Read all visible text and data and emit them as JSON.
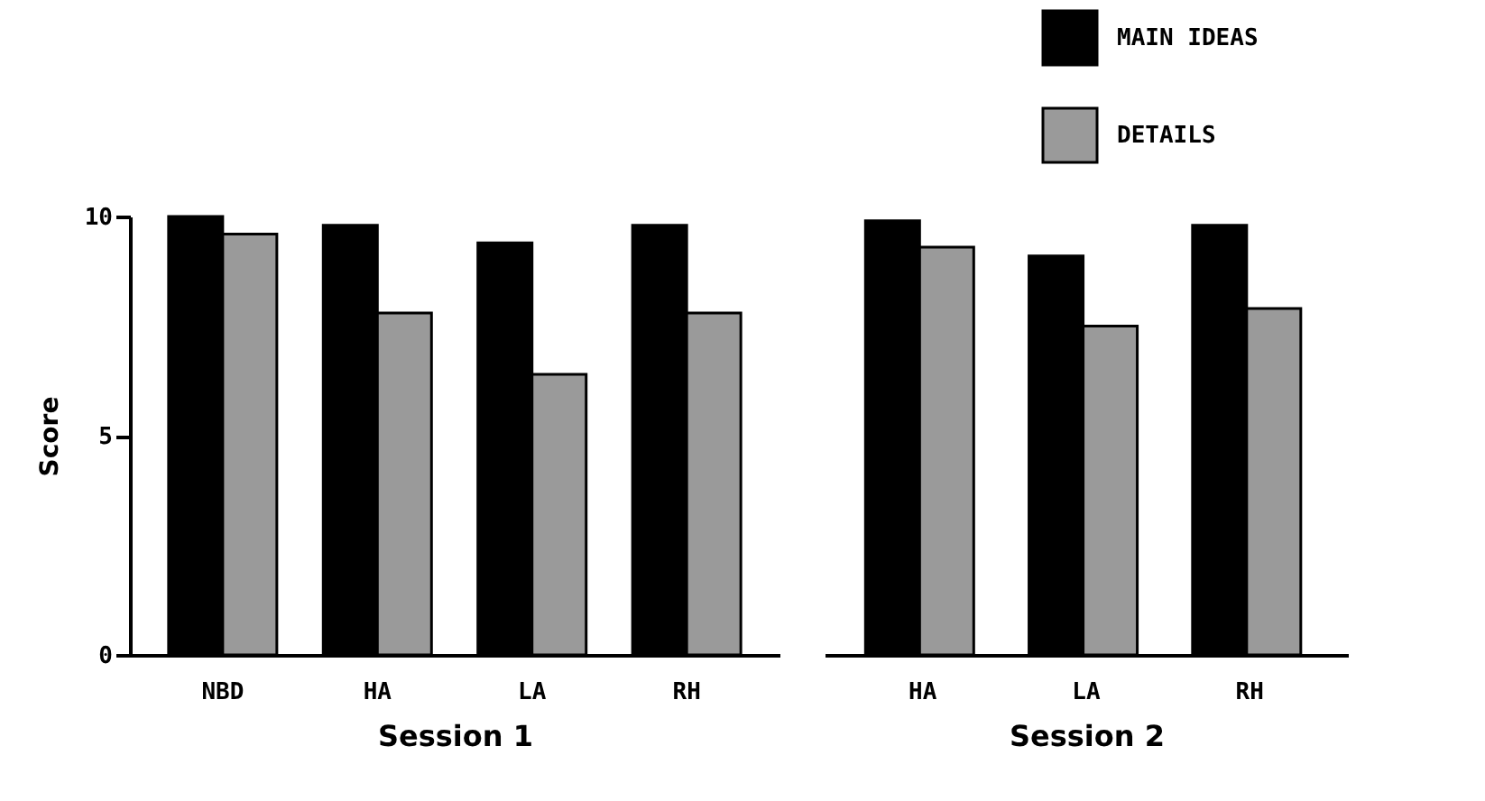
{
  "chart_data": [
    {
      "type": "bar",
      "xlabel": "Session 1",
      "ylabel": "Score",
      "categories": [
        "NBD",
        "HA",
        "LA",
        "RH"
      ],
      "ylim": [
        0,
        10
      ],
      "yticks": [
        0,
        5,
        10
      ],
      "series": [
        {
          "color": "#000000",
          "values": [
            10,
            9.8,
            9.4,
            9.8
          ]
        },
        {
          "color": "#9a9a9a",
          "values": [
            9.6,
            7.8,
            6.4,
            7.8
          ]
        }
      ]
    },
    {
      "type": "bar",
      "xlabel": "Session 2",
      "categories": [
        "HA",
        "LA",
        "RH"
      ],
      "ylim": [
        0,
        10
      ],
      "yticks": [
        0,
        5,
        10
      ],
      "tick_labels": "x",
      "legend": "top right",
      "series": [
        {
          "name": "MAIN IDEAS",
          "color": "#000000",
          "values": [
            9.9,
            9.1,
            9.8
          ]
        },
        {
          "name": "DETAILS",
          "color": "#9a9a9a",
          "values": [
            9.3,
            7.5,
            7.9
          ]
        }
      ]
    }
  ]
}
